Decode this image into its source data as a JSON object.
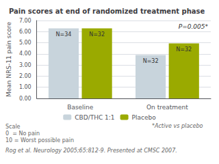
{
  "chart_data": {
    "type": "bar",
    "title": "Pain scores at end of randomized treatment phase",
    "ylabel": "Mean NRS-11 pain score",
    "categories": [
      "Baseline",
      "On treatment"
    ],
    "series": [
      {
        "name": "CBD/THC 1:1",
        "color": "#c8d4dc",
        "values": [
          6.3,
          3.9
        ],
        "value_labels": [
          "N=34",
          "N=32"
        ]
      },
      {
        "name": "Placebo",
        "color": "#9aaa00",
        "values": [
          6.3,
          4.95
        ],
        "value_labels": [
          "N=32",
          "N=32"
        ]
      }
    ],
    "ylim": [
      0,
      7.0
    ],
    "yticks": [
      {
        "value": 0.0,
        "label": "0.00"
      },
      {
        "value": 1.0,
        "label": "1.00"
      },
      {
        "value": 2.0,
        "label": "2.00"
      },
      {
        "value": 3.0,
        "label": "3.00"
      },
      {
        "value": 4.0,
        "label": "4.00"
      },
      {
        "value": 5.0,
        "label": "5.00"
      },
      {
        "value": 6.0,
        "label": "6.00"
      },
      {
        "value": 7.0,
        "label": "7.00"
      }
    ],
    "grid": true,
    "legend": "bottom",
    "annotations": [
      "P=0.005*"
    ],
    "notes": [
      "Scale\n0  = No pain\n10 = Worst possible pain",
      "*Active vs placebo"
    ],
    "citation": "Rog et al. Neurology 2005;65:812-9. Presented at CMSC 2007."
  }
}
